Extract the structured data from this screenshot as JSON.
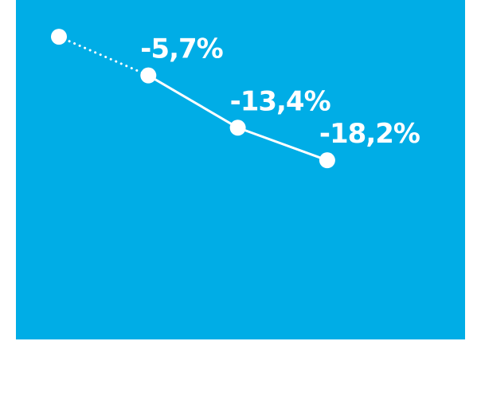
{
  "colors": {
    "background": "#00ade6",
    "foreground": "#ffffff"
  },
  "chart_data": {
    "type": "line",
    "title": "",
    "xlabel": "",
    "ylabel": "",
    "grid": false,
    "legend": "none",
    "x": [
      0,
      1,
      2,
      3
    ],
    "ylim": [
      -45,
      5
    ],
    "series": [
      {
        "values": [
          0,
          -5.7,
          -13.4,
          -18.2
        ],
        "line_styles": [
          "dotted",
          "solid",
          "solid"
        ],
        "labels": [
          "",
          "-5,7%",
          "-13,4%",
          "-18,2%"
        ]
      }
    ]
  }
}
